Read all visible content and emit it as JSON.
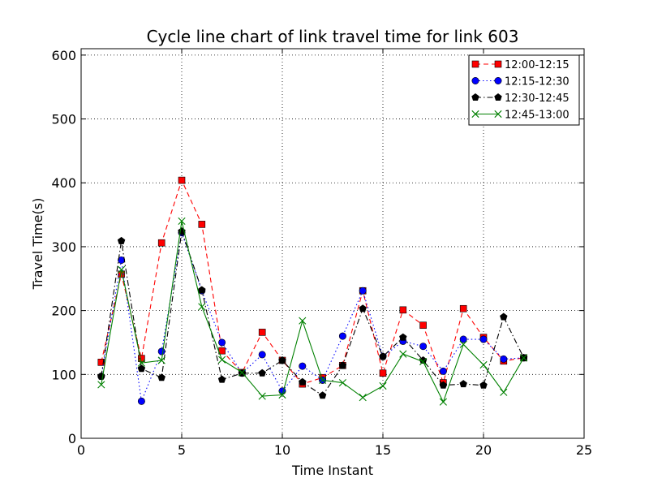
{
  "chart_data": {
    "type": "line",
    "title": "Cycle line chart of link travel time for link 603",
    "xlabel": "Time Instant",
    "ylabel": "Travel Time(s)",
    "xlim": [
      0,
      25
    ],
    "ylim": [
      0,
      610
    ],
    "xticks": [
      0,
      5,
      10,
      15,
      20,
      25
    ],
    "yticks": [
      0,
      100,
      200,
      300,
      400,
      500,
      600
    ],
    "grid": true,
    "legend_position": "top-right",
    "x": [
      1,
      2,
      3,
      4,
      5,
      6,
      7,
      8,
      9,
      10,
      11,
      12,
      13,
      14,
      15,
      16,
      17,
      18,
      19,
      20,
      21,
      22
    ],
    "series": [
      {
        "name": "12:00-12:15",
        "color": "#ff0000",
        "line_style": "dashed",
        "marker": "square",
        "values": [
          119,
          257,
          125,
          306,
          404,
          335,
          137,
          103,
          166,
          122,
          85,
          95,
          114,
          231,
          102,
          201,
          177,
          87,
          203,
          158,
          121,
          126
        ]
      },
      {
        "name": "12:15-12:30",
        "color": "#0000ff",
        "line_style": "dotted",
        "marker": "circle",
        "values": [
          97,
          279,
          58,
          136,
          322,
          231,
          150,
          102,
          131,
          74,
          113,
          91,
          160,
          231,
          128,
          152,
          144,
          105,
          155,
          155,
          124,
          126
        ]
      },
      {
        "name": "12:30-12:45",
        "color": "#000000",
        "line_style": "dashdot",
        "marker": "pentagon",
        "values": [
          97,
          309,
          109,
          95,
          324,
          232,
          92,
          102,
          102,
          122,
          88,
          67,
          114,
          203,
          128,
          158,
          122,
          83,
          85,
          83,
          190,
          126
        ]
      },
      {
        "name": "12:45-13:00",
        "color": "#008000",
        "line_style": "solid",
        "marker": "x",
        "values": [
          84,
          264,
          118,
          122,
          340,
          206,
          123,
          103,
          66,
          68,
          184,
          91,
          87,
          64,
          82,
          132,
          120,
          57,
          147,
          115,
          72,
          126
        ]
      }
    ]
  }
}
